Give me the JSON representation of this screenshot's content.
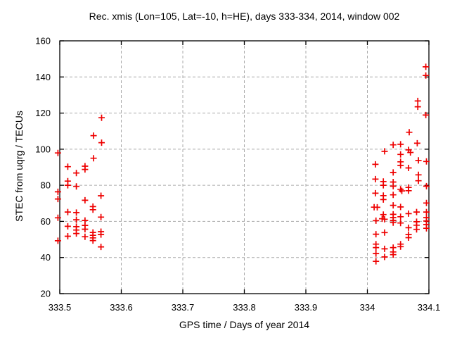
{
  "window": {
    "background": "#ffffff"
  },
  "chart_data": {
    "type": "scatter",
    "title": "Rec. xmis (Lon=105, Lat=-10, h=HE), days 333-334, 2014, window 002",
    "xlabel": "GPS time / Days of year 2014",
    "ylabel": "STEC from uqrg / TECUs",
    "xlim": [
      333.5,
      334.1
    ],
    "ylim": [
      20,
      160
    ],
    "grid": true,
    "legend": "none",
    "axis_color": "#000000",
    "grid_color": "#aaaaaa",
    "text_color": "#000000",
    "marker": {
      "shape": "plus",
      "color": "#ee0000",
      "size": 9
    },
    "xticks": {
      "values": [
        333.5,
        333.6,
        333.7,
        333.8,
        333.9,
        334.0,
        334.1
      ],
      "labels": [
        "333.5",
        "333.6",
        "333.7",
        "333.8",
        "333.9",
        "334",
        "334.1"
      ]
    },
    "yticks": {
      "values": [
        20,
        40,
        60,
        80,
        100,
        120,
        140,
        160
      ],
      "labels": [
        "20",
        "40",
        "60",
        "80",
        "100",
        "120",
        "140",
        "160"
      ]
    },
    "series": [
      {
        "name": "STEC from uqrg",
        "points": [
          [
            333.497,
            97.9
          ],
          [
            333.497,
            76.4
          ],
          [
            333.497,
            72.4
          ],
          [
            333.497,
            62.0
          ],
          [
            333.497,
            49.3
          ],
          [
            333.513,
            90.3
          ],
          [
            333.513,
            82.3
          ],
          [
            333.513,
            80.0
          ],
          [
            333.513,
            65.2
          ],
          [
            333.513,
            57.3
          ],
          [
            333.513,
            51.8
          ],
          [
            333.527,
            86.8
          ],
          [
            333.527,
            79.4
          ],
          [
            333.527,
            64.9
          ],
          [
            333.527,
            60.9
          ],
          [
            333.527,
            57.1
          ],
          [
            333.527,
            55.2
          ],
          [
            333.527,
            53.3
          ],
          [
            333.541,
            90.6
          ],
          [
            333.541,
            88.8
          ],
          [
            333.541,
            71.7
          ],
          [
            333.541,
            60.5
          ],
          [
            333.541,
            57.8
          ],
          [
            333.541,
            55.7
          ],
          [
            333.541,
            51.5
          ],
          [
            333.555,
            107.5
          ],
          [
            333.555,
            95.0
          ],
          [
            333.554,
            68.2
          ],
          [
            333.554,
            66.5
          ],
          [
            333.554,
            53.9
          ],
          [
            333.554,
            52.3
          ],
          [
            333.554,
            50.9
          ],
          [
            333.554,
            49.4
          ],
          [
            333.568,
            117.4
          ],
          [
            333.568,
            103.6
          ],
          [
            333.567,
            74.2
          ],
          [
            333.567,
            62.4
          ],
          [
            333.567,
            54.3
          ],
          [
            333.567,
            52.7
          ],
          [
            333.567,
            45.9
          ],
          [
            334.095,
            145.6
          ],
          [
            334.095,
            140.8
          ],
          [
            334.082,
            126.7
          ],
          [
            334.082,
            123.5
          ],
          [
            334.095,
            118.9
          ],
          [
            334.068,
            109.4
          ],
          [
            334.042,
            102.4
          ],
          [
            334.054,
            102.7
          ],
          [
            334.081,
            103.3
          ],
          [
            334.028,
            98.8
          ],
          [
            334.067,
            99.6
          ],
          [
            334.07,
            98.2
          ],
          [
            334.054,
            97.1
          ],
          [
            334.083,
            93.8
          ],
          [
            334.096,
            93.2
          ],
          [
            334.013,
            91.6
          ],
          [
            334.054,
            93.0
          ],
          [
            334.054,
            91.0
          ],
          [
            334.067,
            89.6
          ],
          [
            334.042,
            87.1
          ],
          [
            334.083,
            85.8
          ],
          [
            334.013,
            83.4
          ],
          [
            334.026,
            82.1
          ],
          [
            334.026,
            80.0
          ],
          [
            334.083,
            82.5
          ],
          [
            334.042,
            81.8
          ],
          [
            334.042,
            79.5
          ],
          [
            334.054,
            77.8
          ],
          [
            334.056,
            76.9
          ],
          [
            334.067,
            78.8
          ],
          [
            334.067,
            77.0
          ],
          [
            334.096,
            79.5
          ],
          [
            334.013,
            75.6
          ],
          [
            334.026,
            74.3
          ],
          [
            334.042,
            74.7
          ],
          [
            334.026,
            72.1
          ],
          [
            334.096,
            70.2
          ],
          [
            334.042,
            68.9
          ],
          [
            334.054,
            68.0
          ],
          [
            334.011,
            67.9
          ],
          [
            334.016,
            67.8
          ],
          [
            334.026,
            63.8
          ],
          [
            334.024,
            61.5
          ],
          [
            334.028,
            61.2
          ],
          [
            334.042,
            63.9
          ],
          [
            334.042,
            62.1
          ],
          [
            334.042,
            60.5
          ],
          [
            334.042,
            59.3
          ],
          [
            334.054,
            62.6
          ],
          [
            334.054,
            59.1
          ],
          [
            334.067,
            64.3
          ],
          [
            334.08,
            65.2
          ],
          [
            334.067,
            56.5
          ],
          [
            334.08,
            59.8
          ],
          [
            334.08,
            57.9
          ],
          [
            334.08,
            55.6
          ],
          [
            334.096,
            65.2
          ],
          [
            334.096,
            62.1
          ],
          [
            334.096,
            60.2
          ],
          [
            334.096,
            58.3
          ],
          [
            334.096,
            56.2
          ],
          [
            334.014,
            60.4
          ],
          [
            334.014,
            52.9
          ],
          [
            334.028,
            53.8
          ],
          [
            334.067,
            52.7
          ],
          [
            334.067,
            51.0
          ],
          [
            334.014,
            47.4
          ],
          [
            334.014,
            45.5
          ],
          [
            334.028,
            44.8
          ],
          [
            334.042,
            45.5
          ],
          [
            334.054,
            47.4
          ],
          [
            334.054,
            46.0
          ],
          [
            334.042,
            43.1
          ],
          [
            334.042,
            41.6
          ],
          [
            334.014,
            42.2
          ],
          [
            334.028,
            40.3
          ],
          [
            334.014,
            37.9
          ]
        ]
      }
    ]
  }
}
